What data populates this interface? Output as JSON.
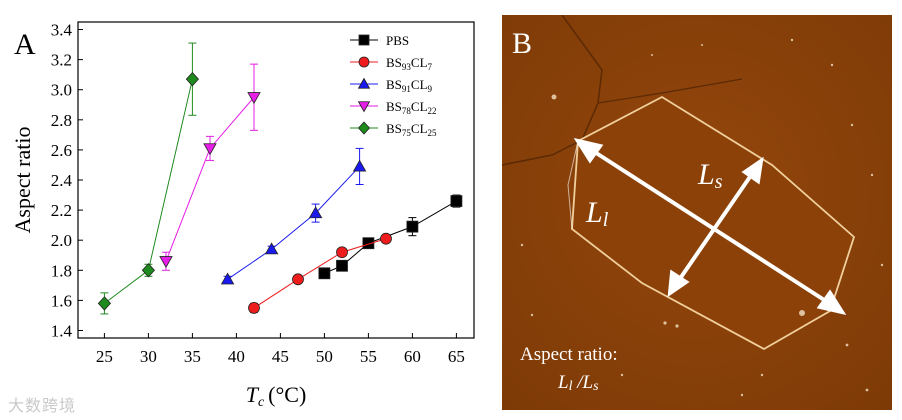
{
  "chart_data": {
    "type": "scatter",
    "panel_label": "A",
    "xlabel_main": "T",
    "xlabel_sub": "c",
    "xlabel_unit": "(°C)",
    "ylabel": "Aspect ratio",
    "xlim": [
      22,
      67
    ],
    "ylim": [
      1.35,
      3.45
    ],
    "xticks": [
      25,
      30,
      35,
      40,
      45,
      50,
      55,
      60,
      65
    ],
    "yticks": [
      1.4,
      1.6,
      1.8,
      2.0,
      2.2,
      2.4,
      2.6,
      2.8,
      3.0,
      3.2,
      3.4
    ],
    "series": [
      {
        "name": "PBS",
        "label_main": "PBS",
        "label_sub": "",
        "label_tail": "",
        "label_sub2": "",
        "color": "#000000",
        "marker": "square",
        "x": [
          50,
          52,
          55,
          60,
          65
        ],
        "y": [
          1.78,
          1.83,
          1.98,
          2.09,
          2.26
        ],
        "err": [
          0.02,
          0.02,
          0.02,
          0.06,
          0.04
        ]
      },
      {
        "name": "BS93CL7",
        "label_main": "BS",
        "label_sub": "93",
        "label_tail": "CL",
        "label_sub2": "7",
        "color": "#ee1c1c",
        "marker": "circle",
        "x": [
          42,
          47,
          52,
          57
        ],
        "y": [
          1.55,
          1.74,
          1.92,
          2.01
        ],
        "err": [
          0.03,
          0.02,
          0.02,
          0.02
        ]
      },
      {
        "name": "BS91CL9",
        "label_main": "BS",
        "label_sub": "91",
        "label_tail": "CL",
        "label_sub2": "9",
        "color": "#1a1aee",
        "marker": "triangle-up",
        "x": [
          39,
          44,
          49,
          54
        ],
        "y": [
          1.74,
          1.94,
          2.18,
          2.49
        ],
        "err": [
          0.02,
          0.02,
          0.06,
          0.12
        ]
      },
      {
        "name": "BS78CL22",
        "label_main": "BS",
        "label_sub": "78",
        "label_tail": "CL",
        "label_sub2": "22",
        "color": "#e61ee6",
        "marker": "triangle-down",
        "x": [
          32,
          37,
          42
        ],
        "y": [
          1.86,
          2.61,
          2.95
        ],
        "err": [
          0.06,
          0.08,
          0.22
        ]
      },
      {
        "name": "BS75CL25",
        "label_main": "BS",
        "label_sub": "75",
        "label_tail": "CL",
        "label_sub2": "25",
        "color": "#1e8a1e",
        "marker": "diamond",
        "x": [
          25,
          30,
          35
        ],
        "y": [
          1.58,
          1.8,
          3.07
        ],
        "err": [
          0.07,
          0.04,
          0.24
        ]
      }
    ],
    "legend_position": "top-right"
  },
  "image_panel": {
    "panel_label": "B",
    "long_axis_main": "L",
    "long_axis_sub": "l",
    "short_axis_main": "L",
    "short_axis_sub": "s",
    "caption_line1": "Aspect ratio:",
    "caption_line2_a": "L",
    "caption_line2_a_sub": "l",
    "caption_line2_sep": " /",
    "caption_line2_b": "L",
    "caption_line2_b_sub": "s",
    "colors": {
      "background": "#8e4208",
      "edge": "#f4d6a8"
    }
  },
  "watermark": "大数跨境"
}
